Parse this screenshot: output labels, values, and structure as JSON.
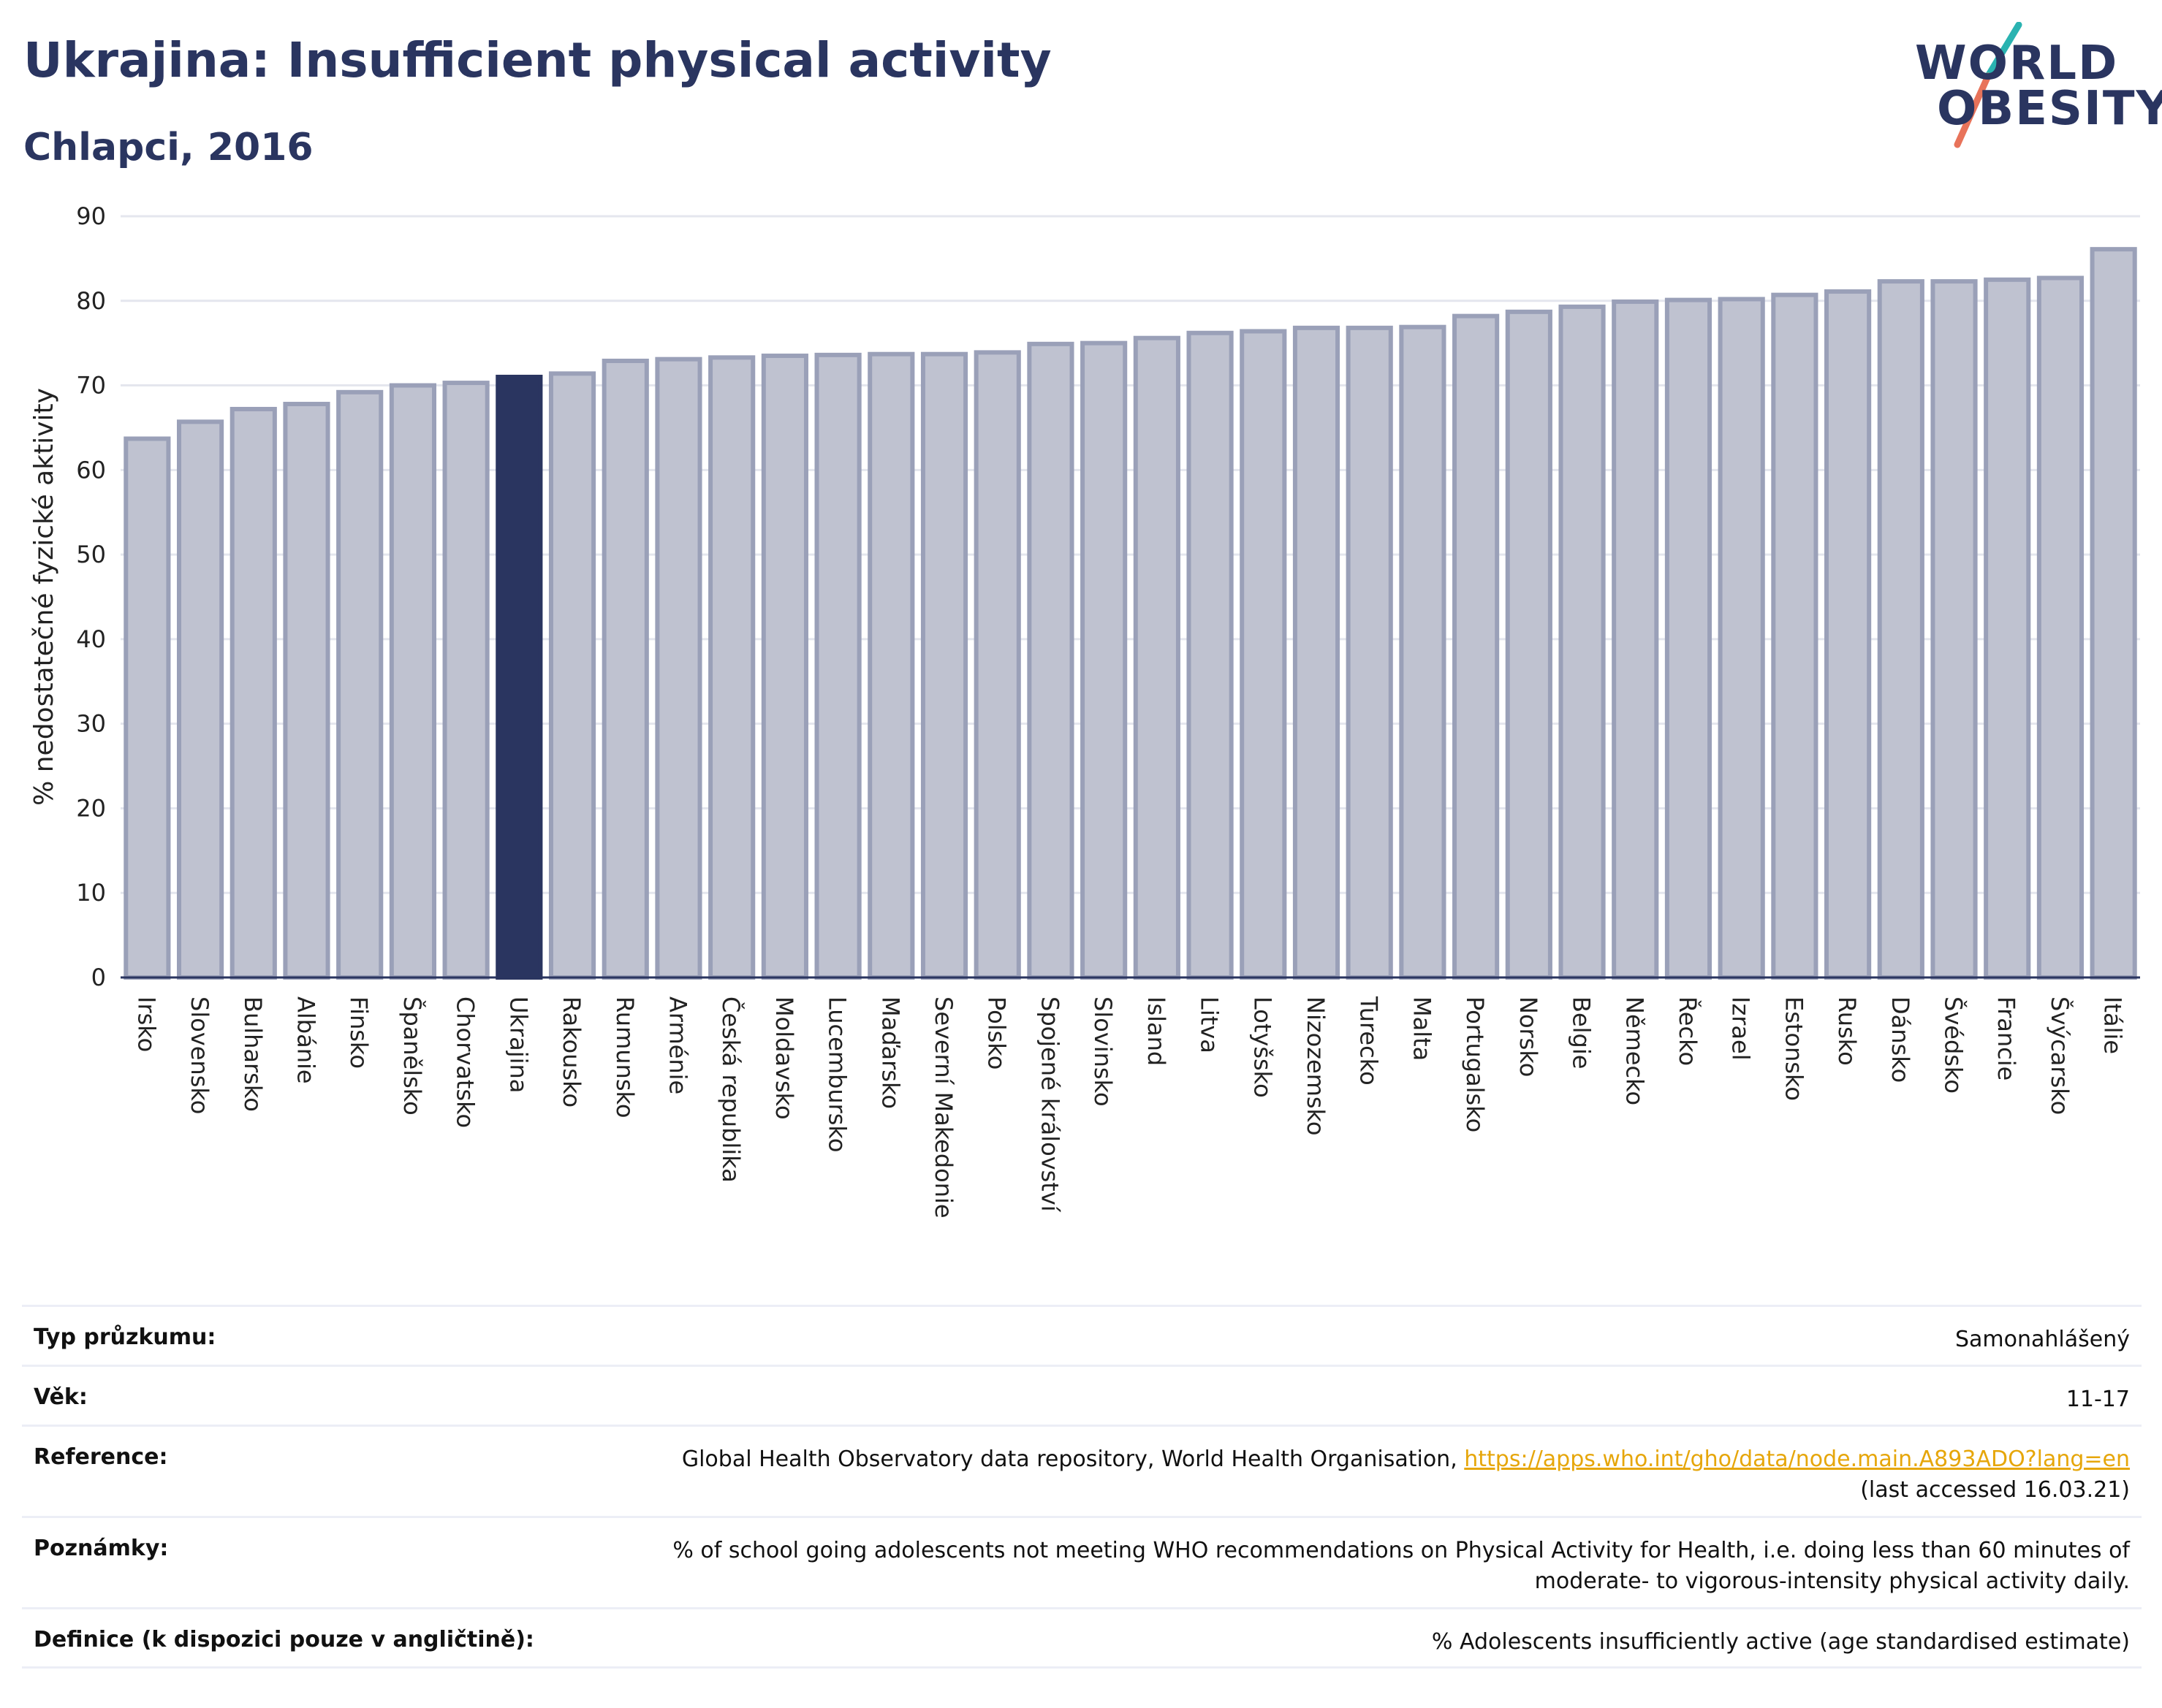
{
  "header": {
    "title": "Ukrajina: Insufficient physical activity",
    "subtitle": "Chlapci, 2016"
  },
  "logo": {
    "line1": "WORLD",
    "line2": "OBESITY",
    "accent_colors": [
      "#2ab3b1",
      "#e8735a"
    ]
  },
  "colors": {
    "bar_fill": "#bfc2d0",
    "bar_stroke": "#9aa0b8",
    "highlight": "#2a3560",
    "grid": "#e4e6ee",
    "link": "#e6a60a"
  },
  "chart_data": {
    "type": "bar",
    "title": "Ukrajina: Insufficient physical activity",
    "subtitle": "Chlapci, 2016",
    "ylabel": "% nedostatečné fyzické aktivity",
    "xlabel": "",
    "ylim": [
      0,
      90
    ],
    "yticks": [
      0,
      10,
      20,
      30,
      40,
      50,
      60,
      70,
      80,
      90
    ],
    "grid": true,
    "highlight_category": "Ukrajina",
    "categories": [
      "Irsko",
      "Slovensko",
      "Bulharsko",
      "Albánie",
      "Finsko",
      "Španělsko",
      "Chorvatsko",
      "Ukrajina",
      "Rakousko",
      "Rumunsko",
      "Arménie",
      "Česká republika",
      "Moldavsko",
      "Lucembursko",
      "Maďarsko",
      "Severní Makedonie",
      "Polsko",
      "Spojené království",
      "Slovinsko",
      "Island",
      "Litva",
      "Lotyšsko",
      "Nizozemsko",
      "Turecko",
      "Malta",
      "Portugalsko",
      "Norsko",
      "Belgie",
      "Německo",
      "Řecko",
      "Izrael",
      "Estonsko",
      "Rusko",
      "Dánsko",
      "Švédsko",
      "Francie",
      "Švýcarsko",
      "Itálie"
    ],
    "values": [
      63.7,
      65.7,
      67.2,
      67.8,
      69.2,
      70.0,
      70.3,
      71.0,
      71.4,
      72.9,
      73.1,
      73.3,
      73.5,
      73.6,
      73.7,
      73.7,
      73.9,
      74.9,
      75.0,
      75.6,
      76.2,
      76.4,
      76.8,
      76.8,
      76.9,
      78.2,
      78.7,
      79.3,
      79.9,
      80.1,
      80.2,
      80.7,
      81.1,
      82.3,
      82.3,
      82.5,
      82.7,
      86.1
    ]
  },
  "meta": {
    "survey_label": "Typ průzkumu:",
    "survey_value": "Samonahlášený",
    "age_label": "Věk:",
    "age_value": "11-17",
    "reference_label": "Reference:",
    "reference_text": "Global Health Observatory data repository, World Health Organisation, ",
    "reference_link": "https://apps.who.int/gho/data/node.main.A893ADO?lang=en",
    "reference_accessed": "(last accessed 16.03.21)",
    "notes_label": "Poznámky:",
    "notes_line1": "% of school going adolescents not meeting WHO recommendations on Physical Activity for Health, i.e. doing less than 60 minutes of",
    "notes_line2": "moderate- to vigorous-intensity physical activity daily.",
    "definition_label": "Definice (k dispozici pouze v angličtině):",
    "definition_value": "% Adolescents insufficiently active (age standardised estimate)"
  }
}
